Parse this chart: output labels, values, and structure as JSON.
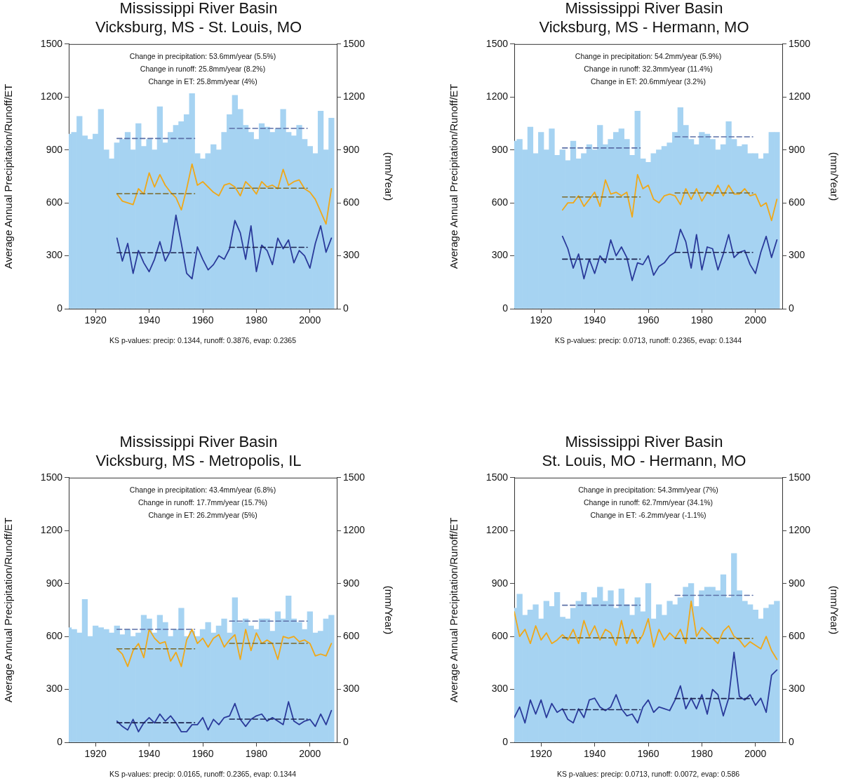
{
  "chart_data": [
    {
      "type": "bar",
      "title": "Mississippi River Basin",
      "subtitle": "Vicksburg, MS - St. Louis, MO",
      "ylabel": "Average Annual Precipitation/Runoff/ET",
      "y2label": "(mm/Year)",
      "annotations": [
        "Change in precipitation: 53.6mm/year (5.5%)",
        "Change in runoff: 25.8mm/year (8.2%)",
        "Change in ET: 25.8mm/year (4%)",
        "KS p-values: precip: 0.1344, runoff: 0.3876, evap: 0.2365"
      ],
      "xlim": [
        1910,
        2010
      ],
      "xticks": [
        1920,
        1940,
        1960,
        1980,
        2000
      ],
      "ylim": [
        0,
        1500
      ],
      "yticks": [
        0,
        300,
        600,
        900,
        1200,
        1500
      ],
      "y2lim": [
        0,
        1500
      ],
      "y2ticks": [
        0,
        300,
        600,
        900,
        1200,
        1500
      ],
      "grid": false,
      "legend": false,
      "marker": "none",
      "x": [
        1910,
        1912,
        1914,
        1916,
        1918,
        1920,
        1922,
        1924,
        1926,
        1928,
        1930,
        1932,
        1934,
        1936,
        1938,
        1940,
        1942,
        1944,
        1946,
        1948,
        1950,
        1952,
        1954,
        1956,
        1958,
        1960,
        1962,
        1964,
        1966,
        1968,
        1970,
        1972,
        1974,
        1976,
        1978,
        1980,
        1982,
        1984,
        1986,
        1988,
        1990,
        1992,
        1994,
        1996,
        1998,
        2000,
        2002,
        2004,
        2006,
        2008
      ],
      "series": [
        {
          "color": "#a6d3f2",
          "values": [
            990,
            1000,
            1090,
            980,
            960,
            990,
            1130,
            900,
            850,
            940,
            960,
            1000,
            900,
            1050,
            920,
            960,
            900,
            1145,
            940,
            1000,
            1040,
            1060,
            1100,
            1220,
            880,
            850,
            880,
            930,
            900,
            1000,
            1100,
            1210,
            1130,
            1040,
            1000,
            960,
            1050,
            1030,
            1000,
            1020,
            1130,
            1000,
            980,
            1040,
            960,
            920,
            880,
            1120,
            900,
            1080
          ]
        },
        {
          "type": "line",
          "color": "#f0a818",
          "x": [
            1928,
            1930,
            1932,
            1934,
            1936,
            1938,
            1940,
            1942,
            1944,
            1946,
            1948,
            1950,
            1952,
            1954,
            1956,
            1958,
            1960,
            1962,
            1964,
            1966,
            1968,
            1970,
            1972,
            1974,
            1976,
            1978,
            1980,
            1982,
            1984,
            1986,
            1988,
            1990,
            1992,
            1994,
            1996,
            1998,
            2000,
            2002,
            2004,
            2006,
            2008
          ],
          "values": [
            650,
            610,
            600,
            590,
            680,
            650,
            770,
            690,
            760,
            700,
            660,
            630,
            560,
            680,
            820,
            700,
            720,
            690,
            660,
            640,
            700,
            710,
            690,
            640,
            720,
            690,
            650,
            720,
            690,
            700,
            680,
            790,
            700,
            720,
            730,
            680,
            660,
            620,
            550,
            480,
            680
          ]
        },
        {
          "type": "line",
          "color": "#2a3a9a",
          "x": [
            1928,
            1930,
            1932,
            1934,
            1936,
            1938,
            1940,
            1942,
            1944,
            1946,
            1948,
            1950,
            1952,
            1954,
            1956,
            1958,
            1960,
            1962,
            1964,
            1966,
            1968,
            1970,
            1972,
            1974,
            1976,
            1978,
            1980,
            1982,
            1984,
            1986,
            1988,
            1990,
            1992,
            1994,
            1996,
            1998,
            2000,
            2002,
            2004,
            2006,
            2008
          ],
          "values": [
            400,
            270,
            370,
            200,
            330,
            260,
            210,
            280,
            380,
            270,
            330,
            530,
            370,
            200,
            170,
            350,
            280,
            220,
            250,
            300,
            280,
            340,
            500,
            430,
            280,
            470,
            210,
            360,
            330,
            250,
            400,
            340,
            390,
            260,
            330,
            300,
            230,
            370,
            470,
            320,
            400
          ]
        },
        {
          "type": "line",
          "color": "#5b6fa6",
          "line_style": "dashed",
          "x": [
            1928,
            1957
          ],
          "values": [
            965,
            965
          ]
        },
        {
          "type": "line",
          "color": "#5b6fa6",
          "line_style": "dashed",
          "x": [
            1970,
            1999
          ],
          "values": [
            1022,
            1022
          ]
        },
        {
          "type": "line",
          "color": "#7a6a2a",
          "line_style": "dashed",
          "x": [
            1928,
            1957
          ],
          "values": [
            652,
            652
          ]
        },
        {
          "type": "line",
          "color": "#7a6a2a",
          "line_style": "dashed",
          "x": [
            1970,
            1999
          ],
          "values": [
            683,
            683
          ]
        },
        {
          "type": "line",
          "color": "#1c2350",
          "line_style": "dashed",
          "x": [
            1928,
            1957
          ],
          "values": [
            317,
            317
          ]
        },
        {
          "type": "line",
          "color": "#1c2350",
          "line_style": "dashed",
          "x": [
            1970,
            1999
          ],
          "values": [
            348,
            348
          ]
        }
      ]
    },
    {
      "type": "bar",
      "title": "Mississippi River Basin",
      "subtitle": "Vicksburg, MS - Hermann, MO",
      "ylabel": "Average Annual Precipitation/Runoff/ET",
      "y2label": "(mm/Year)",
      "annotations": [
        "Change in precipitation: 54.2mm/year (5.9%)",
        "Change in runoff: 32.3mm/year (11.4%)",
        "Change in ET: 20.6mm/year (3.2%)",
        "KS p-values: precip: 0.0713, runoff: 0.2365, evap: 0.1344"
      ],
      "xlim": [
        1910,
        2010
      ],
      "xticks": [
        1920,
        1940,
        1960,
        1980,
        2000
      ],
      "ylim": [
        0,
        1500
      ],
      "yticks": [
        0,
        300,
        600,
        900,
        1200,
        1500
      ],
      "y2lim": [
        0,
        1500
      ],
      "y2ticks": [
        0,
        300,
        600,
        900,
        1200,
        1500
      ],
      "grid": false,
      "legend": false,
      "marker": "none",
      "x": [
        1910,
        1912,
        1914,
        1916,
        1918,
        1920,
        1922,
        1924,
        1926,
        1928,
        1930,
        1932,
        1934,
        1936,
        1938,
        1940,
        1942,
        1944,
        1946,
        1948,
        1950,
        1952,
        1954,
        1956,
        1958,
        1960,
        1962,
        1964,
        1966,
        1968,
        1970,
        1972,
        1974,
        1976,
        1978,
        1980,
        1982,
        1984,
        1986,
        1988,
        1990,
        1992,
        1994,
        1996,
        1998,
        2000,
        2002,
        2004,
        2006,
        2008
      ],
      "series": [
        {
          "color": "#a6d3f2",
          "values": [
            950,
            960,
            900,
            1030,
            880,
            1000,
            900,
            1020,
            870,
            900,
            840,
            950,
            850,
            880,
            930,
            900,
            1040,
            930,
            960,
            1000,
            1020,
            960,
            870,
            1120,
            850,
            830,
            880,
            900,
            920,
            940,
            1000,
            1140,
            1040,
            960,
            930,
            1000,
            990,
            960,
            900,
            930,
            1060,
            960,
            920,
            930,
            880,
            880,
            850,
            880,
            1000,
            1000
          ]
        },
        {
          "type": "line",
          "color": "#f0a818",
          "x": [
            1928,
            1930,
            1932,
            1934,
            1936,
            1938,
            1940,
            1942,
            1944,
            1946,
            1948,
            1950,
            1952,
            1954,
            1956,
            1958,
            1960,
            1962,
            1964,
            1966,
            1968,
            1970,
            1972,
            1974,
            1976,
            1978,
            1980,
            1982,
            1984,
            1986,
            1988,
            1990,
            1992,
            1994,
            1996,
            1998,
            2000,
            2002,
            2004,
            2006,
            2008
          ],
          "values": [
            560,
            600,
            600,
            640,
            580,
            620,
            660,
            580,
            730,
            650,
            660,
            640,
            660,
            520,
            760,
            680,
            700,
            620,
            600,
            640,
            650,
            640,
            590,
            680,
            620,
            680,
            610,
            660,
            640,
            700,
            640,
            700,
            650,
            650,
            680,
            640,
            650,
            580,
            600,
            500,
            620
          ]
        },
        {
          "type": "line",
          "color": "#2a3a9a",
          "x": [
            1928,
            1930,
            1932,
            1934,
            1936,
            1938,
            1940,
            1942,
            1944,
            1946,
            1948,
            1950,
            1952,
            1954,
            1956,
            1958,
            1960,
            1962,
            1964,
            1966,
            1968,
            1970,
            1972,
            1974,
            1976,
            1978,
            1980,
            1982,
            1984,
            1986,
            1988,
            1990,
            1992,
            1994,
            1996,
            1998,
            2000,
            2002,
            2004,
            2006,
            2008
          ],
          "values": [
            410,
            340,
            230,
            310,
            170,
            280,
            200,
            300,
            260,
            390,
            300,
            350,
            290,
            160,
            260,
            250,
            300,
            190,
            240,
            260,
            300,
            320,
            450,
            380,
            230,
            420,
            220,
            350,
            340,
            220,
            310,
            420,
            290,
            320,
            330,
            250,
            200,
            320,
            410,
            290,
            390
          ]
        },
        {
          "type": "line",
          "color": "#5b6fa6",
          "line_style": "dashed",
          "x": [
            1928,
            1957
          ],
          "values": [
            911,
            911
          ]
        },
        {
          "type": "line",
          "color": "#5b6fa6",
          "line_style": "dashed",
          "x": [
            1970,
            1999
          ],
          "values": [
            974,
            974
          ]
        },
        {
          "type": "line",
          "color": "#7a6a2a",
          "line_style": "dashed",
          "x": [
            1928,
            1957
          ],
          "values": [
            633,
            633
          ]
        },
        {
          "type": "line",
          "color": "#7a6a2a",
          "line_style": "dashed",
          "x": [
            1970,
            1999
          ],
          "values": [
            656,
            656
          ]
        },
        {
          "type": "line",
          "color": "#1c2350",
          "line_style": "dashed",
          "x": [
            1928,
            1957
          ],
          "values": [
            281,
            281
          ]
        },
        {
          "type": "line",
          "color": "#1c2350",
          "line_style": "dashed",
          "x": [
            1970,
            1999
          ],
          "values": [
            319,
            319
          ]
        }
      ]
    },
    {
      "type": "bar",
      "title": "Mississippi River Basin",
      "subtitle": "Vicksburg, MS - Metropolis, IL",
      "ylabel": "Average Annual Precipitation/Runoff/ET",
      "y2label": "(mm/Year)",
      "annotations": [
        "Change in precipitation: 43.4mm/year (6.8%)",
        "Change in runoff: 17.7mm/year (15.7%)",
        "Change in ET: 26.2mm/year (5%)",
        "KS p-values: precip: 0.0165, runoff: 0.2365, evap: 0.1344"
      ],
      "xlim": [
        1910,
        2010
      ],
      "xticks": [
        1920,
        1940,
        1960,
        1980,
        2000
      ],
      "ylim": [
        0,
        1500
      ],
      "yticks": [
        0,
        300,
        600,
        900,
        1200,
        1500
      ],
      "y2lim": [
        0,
        1500
      ],
      "y2ticks": [
        0,
        300,
        600,
        900,
        1200,
        1500
      ],
      "grid": false,
      "legend": false,
      "marker": "none",
      "x": [
        1910,
        1912,
        1914,
        1916,
        1918,
        1920,
        1922,
        1924,
        1926,
        1928,
        1930,
        1932,
        1934,
        1936,
        1938,
        1940,
        1942,
        1944,
        1946,
        1948,
        1950,
        1952,
        1954,
        1956,
        1958,
        1960,
        1962,
        1964,
        1966,
        1968,
        1970,
        1972,
        1974,
        1976,
        1978,
        1980,
        1982,
        1984,
        1986,
        1988,
        1990,
        1992,
        1994,
        1996,
        1998,
        2000,
        2002,
        2004,
        2006,
        2008
      ],
      "series": [
        {
          "color": "#a6d3f2",
          "values": [
            650,
            640,
            620,
            810,
            600,
            660,
            650,
            640,
            620,
            660,
            610,
            640,
            600,
            620,
            720,
            700,
            620,
            720,
            680,
            600,
            640,
            760,
            600,
            630,
            600,
            640,
            680,
            620,
            660,
            700,
            620,
            820,
            680,
            700,
            660,
            640,
            700,
            700,
            630,
            740,
            700,
            830,
            700,
            680,
            640,
            740,
            620,
            630,
            700,
            720
          ]
        },
        {
          "type": "line",
          "color": "#f0a818",
          "x": [
            1928,
            1930,
            1932,
            1934,
            1936,
            1938,
            1940,
            1942,
            1944,
            1946,
            1948,
            1950,
            1952,
            1954,
            1956,
            1958,
            1960,
            1962,
            1964,
            1966,
            1968,
            1970,
            1972,
            1974,
            1976,
            1978,
            1980,
            1982,
            1984,
            1986,
            1988,
            1990,
            1992,
            1994,
            1996,
            1998,
            2000,
            2002,
            2004,
            2006,
            2008
          ],
          "values": [
            530,
            500,
            430,
            520,
            560,
            480,
            640,
            590,
            560,
            570,
            460,
            510,
            430,
            580,
            640,
            560,
            590,
            540,
            590,
            610,
            540,
            580,
            610,
            470,
            640,
            520,
            620,
            560,
            580,
            560,
            470,
            600,
            590,
            600,
            570,
            580,
            560,
            490,
            500,
            490,
            560
          ]
        },
        {
          "type": "line",
          "color": "#2a3a9a",
          "x": [
            1928,
            1930,
            1932,
            1934,
            1936,
            1938,
            1940,
            1942,
            1944,
            1946,
            1948,
            1950,
            1952,
            1954,
            1956,
            1958,
            1960,
            1962,
            1964,
            1966,
            1968,
            1970,
            1972,
            1974,
            1976,
            1978,
            1980,
            1982,
            1984,
            1986,
            1988,
            1990,
            1992,
            1994,
            1996,
            1998,
            2000,
            2002,
            2004,
            2006,
            2008
          ],
          "values": [
            120,
            90,
            70,
            130,
            60,
            110,
            140,
            110,
            160,
            120,
            150,
            110,
            60,
            60,
            100,
            100,
            140,
            70,
            130,
            100,
            140,
            150,
            220,
            130,
            90,
            130,
            150,
            160,
            120,
            140,
            120,
            100,
            230,
            120,
            100,
            120,
            130,
            90,
            160,
            100,
            180
          ]
        },
        {
          "type": "line",
          "color": "#5b6fa6",
          "line_style": "dashed",
          "x": [
            1928,
            1957
          ],
          "values": [
            640,
            640
          ]
        },
        {
          "type": "line",
          "color": "#5b6fa6",
          "line_style": "dashed",
          "x": [
            1970,
            1999
          ],
          "values": [
            687,
            687
          ]
        },
        {
          "type": "line",
          "color": "#7a6a2a",
          "line_style": "dashed",
          "x": [
            1928,
            1957
          ],
          "values": [
            530,
            530
          ]
        },
        {
          "type": "line",
          "color": "#7a6a2a",
          "line_style": "dashed",
          "x": [
            1970,
            1999
          ],
          "values": [
            561,
            561
          ]
        },
        {
          "type": "line",
          "color": "#1c2350",
          "line_style": "dashed",
          "x": [
            1928,
            1957
          ],
          "values": [
            111,
            111
          ]
        },
        {
          "type": "line",
          "color": "#1c2350",
          "line_style": "dashed",
          "x": [
            1970,
            1999
          ],
          "values": [
            131,
            131
          ]
        }
      ]
    },
    {
      "type": "bar",
      "title": "Mississippi River Basin",
      "subtitle": "St. Louis, MO - Hermann, MO",
      "ylabel": "Average Annual Precipitation/Runoff/ET",
      "y2label": "(mm/Year)",
      "annotations": [
        "Change in precipitation: 54.3mm/year (7%)",
        "Change in runoff: 62.7mm/year (34.1%)",
        "Change in ET: -6.2mm/year (-1.1%)",
        "KS p-values: precip: 0.0713, runoff: 0.0072, evap: 0.586"
      ],
      "xlim": [
        1910,
        2010
      ],
      "xticks": [
        1920,
        1940,
        1960,
        1980,
        2000
      ],
      "ylim": [
        0,
        1500
      ],
      "yticks": [
        0,
        300,
        600,
        900,
        1200,
        1500
      ],
      "y2lim": [
        0,
        1500
      ],
      "y2ticks": [
        0,
        300,
        600,
        900,
        1200,
        1500
      ],
      "grid": false,
      "legend": false,
      "marker": "none",
      "x": [
        1910,
        1912,
        1914,
        1916,
        1918,
        1920,
        1922,
        1924,
        1926,
        1928,
        1930,
        1932,
        1934,
        1936,
        1938,
        1940,
        1942,
        1944,
        1946,
        1948,
        1950,
        1952,
        1954,
        1956,
        1958,
        1960,
        1962,
        1964,
        1966,
        1968,
        1970,
        1972,
        1974,
        1976,
        1978,
        1980,
        1982,
        1984,
        1986,
        1988,
        1990,
        1992,
        1994,
        1996,
        1998,
        2000,
        2002,
        2004,
        2006,
        2008
      ],
      "series": [
        {
          "color": "#a6d3f2",
          "values": [
            760,
            840,
            720,
            750,
            780,
            700,
            800,
            770,
            850,
            710,
            700,
            760,
            800,
            850,
            780,
            820,
            880,
            800,
            860,
            760,
            870,
            780,
            720,
            820,
            740,
            900,
            700,
            780,
            720,
            800,
            780,
            820,
            880,
            900,
            770,
            860,
            880,
            880,
            860,
            950,
            820,
            1070,
            860,
            800,
            780,
            750,
            700,
            760,
            780,
            800
          ]
        },
        {
          "type": "line",
          "color": "#f0a818",
          "values": [
            740,
            600,
            640,
            560,
            660,
            580,
            620,
            560,
            580,
            610,
            580,
            640,
            560,
            690,
            600,
            660,
            580,
            640,
            620,
            550,
            690,
            560,
            640,
            560,
            610,
            700,
            540,
            640,
            580,
            620,
            590,
            640,
            560,
            800,
            600,
            650,
            620,
            590,
            560,
            630,
            660,
            600,
            580,
            540,
            570,
            550,
            530,
            600,
            520,
            470
          ]
        },
        {
          "type": "line",
          "color": "#2a3a9a",
          "values": [
            140,
            200,
            110,
            240,
            160,
            240,
            140,
            220,
            170,
            190,
            130,
            110,
            190,
            140,
            240,
            250,
            200,
            180,
            200,
            270,
            190,
            150,
            160,
            110,
            200,
            240,
            170,
            200,
            190,
            180,
            240,
            320,
            190,
            250,
            190,
            270,
            160,
            300,
            270,
            150,
            250,
            510,
            260,
            240,
            270,
            210,
            250,
            170,
            380,
            410
          ]
        },
        {
          "type": "line",
          "color": "#5b6fa6",
          "line_style": "dashed",
          "x": [
            1928,
            1957
          ],
          "values": [
            777,
            777
          ]
        },
        {
          "type": "line",
          "color": "#5b6fa6",
          "line_style": "dashed",
          "x": [
            1970,
            1999
          ],
          "values": [
            833,
            833
          ]
        },
        {
          "type": "line",
          "color": "#7a6a2a",
          "line_style": "dashed",
          "x": [
            1928,
            1957
          ],
          "values": [
            592,
            592
          ]
        },
        {
          "type": "line",
          "color": "#7a6a2a",
          "line_style": "dashed",
          "x": [
            1970,
            1999
          ],
          "values": [
            589,
            589
          ]
        },
        {
          "type": "line",
          "color": "#1c2350",
          "line_style": "dashed",
          "x": [
            1928,
            1957
          ],
          "values": [
            185,
            185
          ]
        },
        {
          "type": "line",
          "color": "#1c2350",
          "line_style": "dashed",
          "x": [
            1970,
            1999
          ],
          "values": [
            248,
            248
          ]
        }
      ]
    }
  ]
}
